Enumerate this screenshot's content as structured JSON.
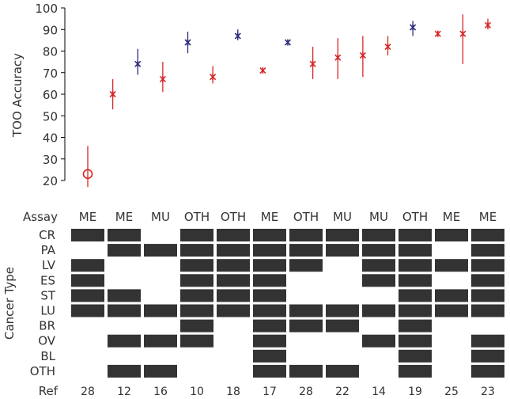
{
  "chart_data": [
    {
      "type": "scatter",
      "title": "",
      "ylabel": "TOO Accuracy",
      "xlabel": "",
      "ylim": [
        20,
        100
      ],
      "yticks": [
        20,
        30,
        40,
        50,
        60,
        70,
        80,
        90,
        100
      ],
      "grid": false,
      "colors": {
        "red": "#d62728",
        "blue": "#2c2c7a"
      },
      "points": [
        {
          "y": 23,
          "low": 17,
          "high": 36,
          "color": "red",
          "marker": "circle"
        },
        {
          "y": 60,
          "low": 53,
          "high": 67,
          "color": "red",
          "marker": "star"
        },
        {
          "y": 74,
          "low": 69,
          "high": 81,
          "color": "blue",
          "marker": "star"
        },
        {
          "y": 67,
          "low": 61,
          "high": 75,
          "color": "red",
          "marker": "star"
        },
        {
          "y": 84,
          "low": 79,
          "high": 89,
          "color": "blue",
          "marker": "star"
        },
        {
          "y": 68,
          "low": 65,
          "high": 73,
          "color": "red",
          "marker": "star"
        },
        {
          "y": 87,
          "low": 85,
          "high": 90,
          "color": "blue",
          "marker": "star"
        },
        {
          "y": 71,
          "low": 71,
          "high": 71,
          "color": "red",
          "marker": "star"
        },
        {
          "y": 84,
          "low": 84,
          "high": 84,
          "color": "blue",
          "marker": "star"
        },
        {
          "y": 74,
          "low": 67,
          "high": 82,
          "color": "red",
          "marker": "star"
        },
        {
          "y": 77,
          "low": 67,
          "high": 86,
          "color": "red",
          "marker": "star"
        },
        {
          "y": 78,
          "low": 68,
          "high": 87,
          "color": "red",
          "marker": "star"
        },
        {
          "y": 82,
          "low": 78,
          "high": 87,
          "color": "red",
          "marker": "star"
        },
        {
          "y": 91,
          "low": 87,
          "high": 94,
          "color": "blue",
          "marker": "star"
        },
        {
          "y": 88,
          "low": 87,
          "high": 89,
          "color": "red",
          "marker": "star"
        },
        {
          "y": 88,
          "low": 74,
          "high": 97,
          "color": "red",
          "marker": "star"
        },
        {
          "y": 92,
          "low": 90,
          "high": 95,
          "color": "red",
          "marker": "star"
        }
      ]
    },
    {
      "type": "heatmap",
      "ylabel": "Cancer Type",
      "assay_label": "Assay",
      "ref_label": "Ref",
      "columns": [
        {
          "assay": "ME",
          "ref": "28"
        },
        {
          "assay": "ME",
          "ref": "12"
        },
        {
          "assay": "MU",
          "ref": "16"
        },
        {
          "assay": "OTH",
          "ref": "10"
        },
        {
          "assay": "OTH",
          "ref": "18"
        },
        {
          "assay": "ME",
          "ref": "17"
        },
        {
          "assay": "OTH",
          "ref": "28"
        },
        {
          "assay": "MU",
          "ref": "22"
        },
        {
          "assay": "MU",
          "ref": "14"
        },
        {
          "assay": "OTH",
          "ref": "19"
        },
        {
          "assay": "ME",
          "ref": "25"
        },
        {
          "assay": "ME",
          "ref": "23"
        }
      ],
      "rows": [
        "CR",
        "PA",
        "LV",
        "ES",
        "ST",
        "LU",
        "BR",
        "OV",
        "BL",
        "OTH"
      ],
      "matrix": [
        [
          1,
          1,
          0,
          1,
          1,
          1,
          1,
          1,
          1,
          1,
          1,
          1
        ],
        [
          0,
          1,
          1,
          1,
          1,
          1,
          1,
          1,
          1,
          1,
          0,
          1
        ],
        [
          1,
          0,
          0,
          1,
          1,
          1,
          1,
          0,
          1,
          1,
          1,
          1
        ],
        [
          1,
          0,
          0,
          1,
          1,
          1,
          0,
          0,
          1,
          1,
          0,
          1
        ],
        [
          1,
          1,
          0,
          1,
          1,
          1,
          0,
          0,
          0,
          1,
          1,
          1
        ],
        [
          1,
          1,
          1,
          1,
          1,
          1,
          1,
          1,
          1,
          1,
          1,
          1
        ],
        [
          0,
          0,
          0,
          1,
          0,
          1,
          1,
          1,
          0,
          1,
          0,
          0
        ],
        [
          0,
          1,
          1,
          1,
          0,
          1,
          0,
          0,
          1,
          1,
          0,
          1
        ],
        [
          0,
          0,
          0,
          0,
          0,
          1,
          0,
          0,
          0,
          1,
          0,
          1
        ],
        [
          0,
          1,
          1,
          0,
          0,
          1,
          1,
          1,
          0,
          1,
          0,
          1
        ]
      ],
      "cell_color": "#333333"
    }
  ]
}
